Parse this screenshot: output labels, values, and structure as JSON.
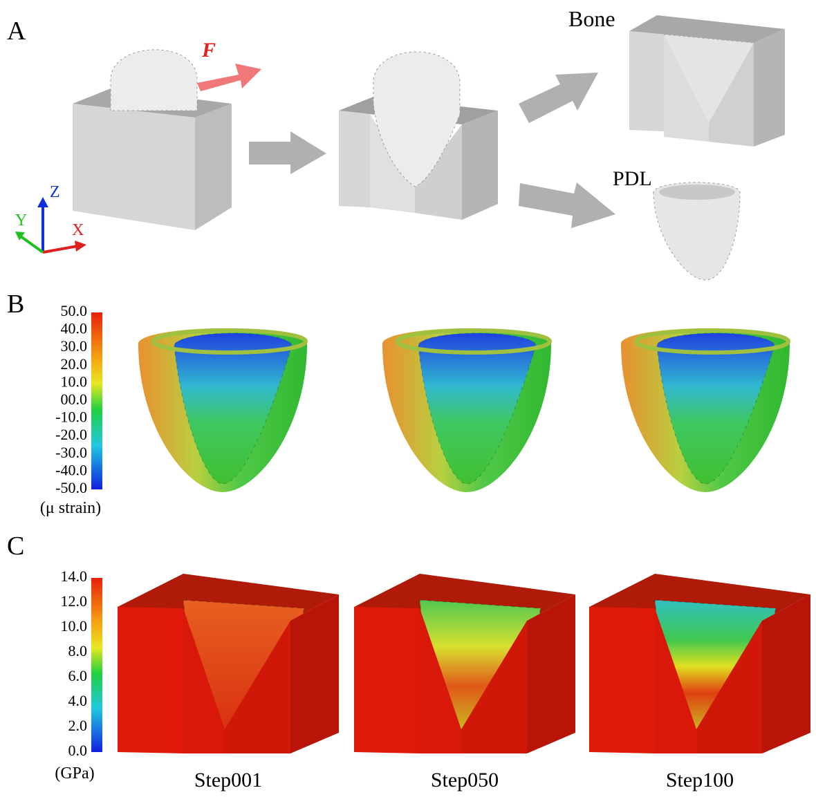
{
  "panel_a": {
    "label": "A",
    "force_label": "F",
    "bone_label": "Bone",
    "pdl_label": "PDL",
    "axes": {
      "x": "X",
      "y": "Y",
      "z": "Z"
    }
  },
  "panel_b": {
    "label": "B",
    "colorbar_ticks": [
      "50.0",
      "40.0",
      "30.0",
      "20.0",
      "10.0",
      "00.0",
      "-10.0",
      "-20.0",
      "-30.0",
      "-40.0",
      "-50.0"
    ],
    "unit": "(μ strain)"
  },
  "panel_c": {
    "label": "C",
    "colorbar_ticks": [
      "14.0",
      "12.0",
      "10.0",
      "8.0",
      "6.0",
      "4.0",
      "2.0",
      "0.0"
    ],
    "unit": "(GPa)",
    "steps": [
      "Step001",
      "Step050",
      "Step100"
    ]
  }
}
